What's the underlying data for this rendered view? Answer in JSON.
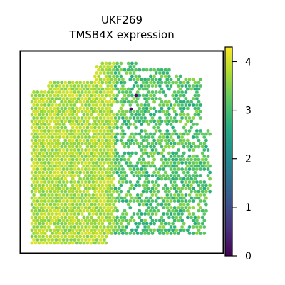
{
  "chart_data": {
    "type": "scatter",
    "subtype": "spatial-hexbin",
    "title_lines": [
      "UKF269",
      "TMSB4X expression"
    ],
    "colormap": "viridis",
    "colorbar": {
      "range": [
        0,
        4.3
      ],
      "ticks": [
        0,
        1,
        2,
        3,
        4
      ],
      "tick_labels": [
        "0",
        "1",
        "2",
        "3",
        "4"
      ],
      "placement": "right"
    },
    "axes": {
      "frame": true,
      "ticks": false,
      "grid": false
    },
    "regions": [
      {
        "name": "left tissue region",
        "typical_value": 3.7,
        "range": [
          3.4,
          4.1
        ]
      },
      {
        "name": "right tissue region",
        "typical_value": 3.1,
        "range": [
          2.6,
          3.6
        ]
      }
    ],
    "outliers": [
      {
        "value": 0.1
      },
      {
        "value": 0.2
      }
    ]
  }
}
